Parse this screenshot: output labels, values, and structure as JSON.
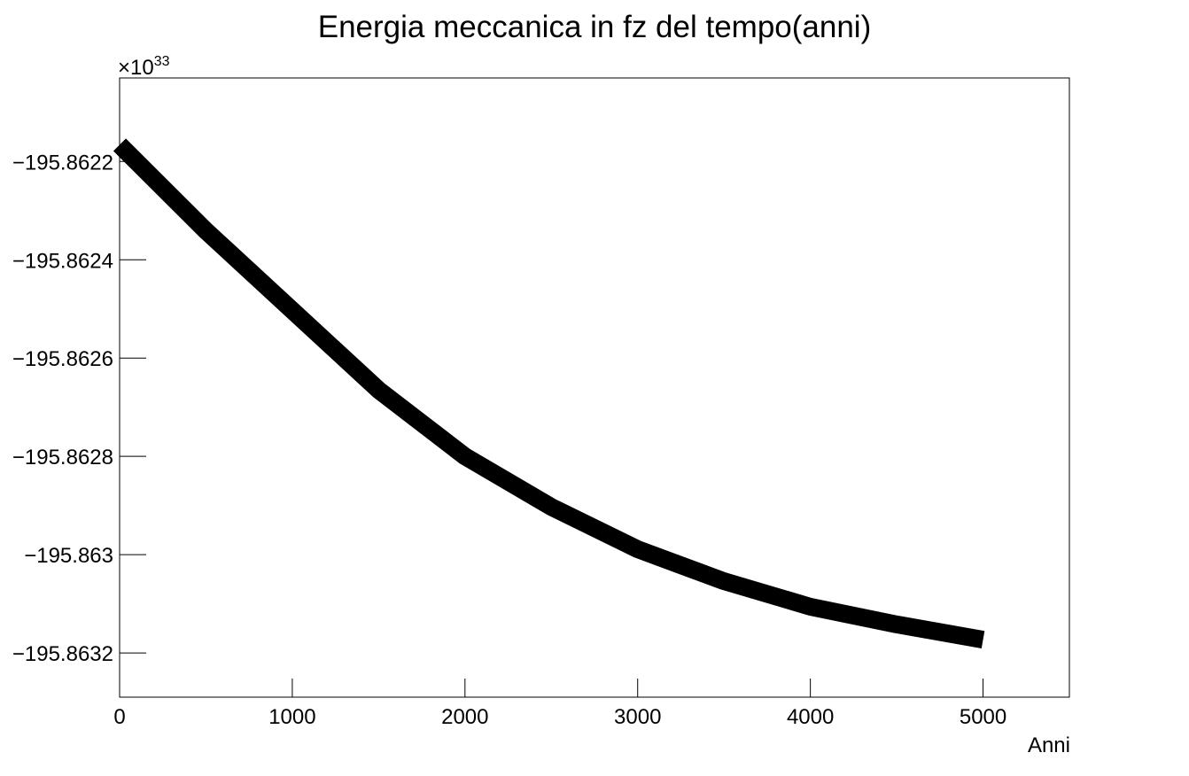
{
  "chart_data": {
    "type": "line",
    "title": "Energia meccanica in fz del tempo(anni)",
    "x_label": "Anni",
    "y_multiplier": "×10",
    "y_exponent": "33",
    "x": [
      0,
      500,
      1000,
      1500,
      2000,
      2500,
      3000,
      3500,
      4000,
      4500,
      5000
    ],
    "series": [
      {
        "color": "#000000",
        "values": [
          -195.862166,
          -195.862341,
          -195.862503,
          -195.862665,
          -195.8628,
          -195.862903,
          -195.862989,
          -195.863054,
          -195.863106,
          -195.863142,
          -195.863173
        ]
      }
    ],
    "xlim": [
      0,
      5500
    ],
    "xticks": [
      0,
      1000,
      2000,
      3000,
      4000,
      5000
    ],
    "ylim": [
      -195.86329,
      -195.86203
    ],
    "yticks": [
      {
        "value": -195.8622,
        "label": "−195.8622"
      },
      {
        "value": -195.8624,
        "label": "−195.8624"
      },
      {
        "value": -195.8626,
        "label": "−195.8626"
      },
      {
        "value": -195.8628,
        "label": "−195.8628"
      },
      {
        "value": -195.863,
        "label": "−195.863"
      },
      {
        "value": -195.8632,
        "label": "−195.8632"
      }
    ],
    "grid": false
  }
}
